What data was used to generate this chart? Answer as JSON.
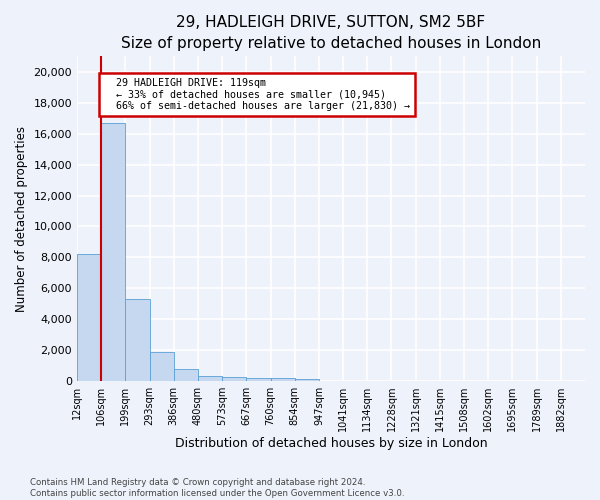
{
  "title1": "29, HADLEIGH DRIVE, SUTTON, SM2 5BF",
  "title2": "Size of property relative to detached houses in London",
  "xlabel": "Distribution of detached houses by size in London",
  "ylabel": "Number of detached properties",
  "bin_labels": [
    "12sqm",
    "106sqm",
    "199sqm",
    "293sqm",
    "386sqm",
    "480sqm",
    "573sqm",
    "667sqm",
    "760sqm",
    "854sqm",
    "947sqm",
    "1041sqm",
    "1134sqm",
    "1228sqm",
    "1321sqm",
    "1415sqm",
    "1508sqm",
    "1602sqm",
    "1695sqm",
    "1789sqm",
    "1882sqm"
  ],
  "bar_heights": [
    8200,
    16700,
    5300,
    1850,
    750,
    360,
    280,
    230,
    175,
    130,
    0,
    0,
    0,
    0,
    0,
    0,
    0,
    0,
    0,
    0,
    0
  ],
  "bar_color": "#c5d8f0",
  "bar_edge_color": "#5a9fd4",
  "property_line_label": "29 HADLEIGH DRIVE: 119sqm",
  "annotation_smaller": "← 33% of detached houses are smaller (10,945)",
  "annotation_larger": "66% of semi-detached houses are larger (21,830) →",
  "annotation_box_color": "#ffffff",
  "annotation_box_edge": "#cc0000",
  "vline_color": "#cc0000",
  "ylim": [
    0,
    21000
  ],
  "yticks": [
    0,
    2000,
    4000,
    6000,
    8000,
    10000,
    12000,
    14000,
    16000,
    18000,
    20000
  ],
  "footer1": "Contains HM Land Registry data © Crown copyright and database right 2024.",
  "footer2": "Contains public sector information licensed under the Open Government Licence v3.0.",
  "bg_color": "#eef2fb",
  "plot_bg_color": "#eef2fb",
  "grid_color": "#ffffff",
  "title1_fontsize": 11,
  "title2_fontsize": 9.5
}
